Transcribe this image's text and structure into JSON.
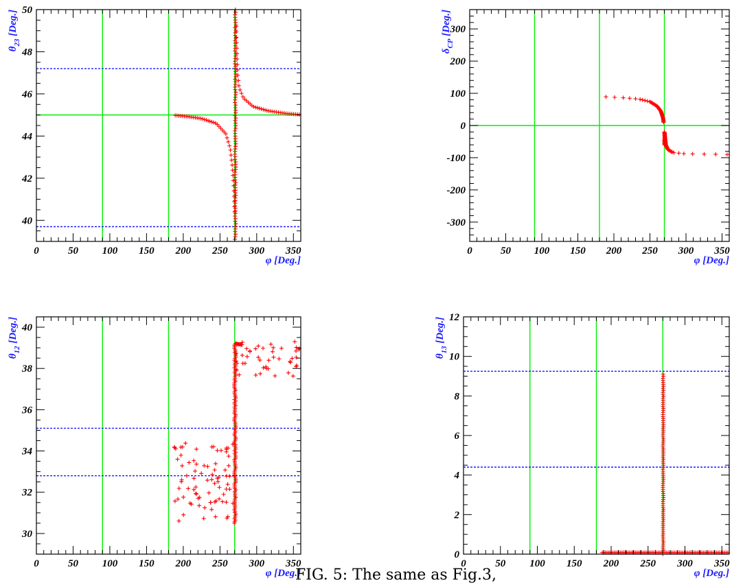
{
  "caption": "FIG. 5: The same as Fig.3,",
  "chart_data": [
    {
      "id": "theta23",
      "type": "scatter",
      "xlabel": "φ [Deg.]",
      "ylabel_sym": "θ",
      "ylabel_sub": "23",
      "ylabel_unit": " [Deg.]",
      "xlim": [
        0,
        360
      ],
      "ylim": [
        39,
        50
      ],
      "xticks": [
        0,
        50,
        100,
        150,
        200,
        250,
        300,
        350
      ],
      "yticks": [
        40,
        42,
        44,
        46,
        48,
        50
      ],
      "xminor": 10,
      "yminor": 0.5,
      "vlines": [
        90,
        180,
        270
      ],
      "hlines": [
        45
      ],
      "dashed_hlines": [
        47.2,
        39.7
      ],
      "curves": [
        {
          "kind": "vertical",
          "x": 271,
          "y": [
            39.1,
            50
          ],
          "jitter": 1.3,
          "n": 90
        },
        {
          "kind": "poly",
          "points": [
            [
              189,
              44.98
            ],
            [
              205,
              44.93
            ],
            [
              225,
              44.83
            ],
            [
              245,
              44.6
            ],
            [
              258,
              44.1
            ],
            [
              264,
              43.4
            ],
            [
              267,
              42.5
            ],
            [
              269,
              41.4
            ],
            [
              270,
              40.4
            ]
          ],
          "n": 45
        },
        {
          "kind": "poly",
          "points": [
            [
              272,
              49.2
            ],
            [
              273,
              48.0
            ],
            [
              274,
              47.0
            ],
            [
              276,
              46.3
            ],
            [
              282,
              45.8
            ],
            [
              295,
              45.4
            ],
            [
              315,
              45.2
            ],
            [
              340,
              45.07
            ],
            [
              358,
              45.02
            ]
          ],
          "n": 45
        }
      ]
    },
    {
      "id": "deltaCP",
      "type": "scatter",
      "xlabel": "φ [Deg.]",
      "ylabel_sym": "δ",
      "ylabel_sub": "CP",
      "ylabel_unit": " [Deg.]",
      "xlim": [
        0,
        360
      ],
      "ylim": [
        -360,
        360
      ],
      "xticks": [
        0,
        50,
        100,
        150,
        200,
        250,
        300,
        350
      ],
      "yticks": [
        -300,
        -200,
        -100,
        0,
        100,
        200,
        300
      ],
      "xminor": 10,
      "yminor": 20,
      "vlines": [
        90,
        180,
        270
      ],
      "hlines": [
        0
      ],
      "dashed_hlines": [],
      "curves": [
        {
          "kind": "poly",
          "points": [
            [
              189,
              89
            ],
            [
              215,
              86
            ],
            [
              235,
              82
            ],
            [
              250,
              74
            ],
            [
              260,
              60
            ],
            [
              265,
              45
            ],
            [
              268,
              25
            ],
            [
              269,
              10
            ]
          ],
          "n": 45
        },
        {
          "kind": "poly",
          "points": [
            [
              270,
              -20
            ],
            [
              271,
              -40
            ],
            [
              272,
              -60
            ],
            [
              275,
              -75
            ],
            [
              282,
              -84
            ],
            [
              300,
              -88
            ],
            [
              330,
              -89
            ],
            [
              357,
              -90
            ]
          ],
          "n": 45
        },
        {
          "kind": "vertical",
          "x": 270.5,
          "y": [
            -60,
            -25
          ],
          "jitter": 1.0,
          "n": 20
        }
      ]
    },
    {
      "id": "theta12",
      "type": "scatter",
      "xlabel": "φ [Deg.]",
      "ylabel_sym": "θ",
      "ylabel_sub": "12",
      "ylabel_unit": " [Deg.]",
      "xlim": [
        0,
        360
      ],
      "ylim": [
        29,
        40.5
      ],
      "xticks": [
        0,
        50,
        100,
        150,
        200,
        250,
        300,
        350
      ],
      "yticks": [
        30,
        32,
        34,
        36,
        38,
        40
      ],
      "xminor": 10,
      "yminor": 0.5,
      "vlines": [
        90,
        180,
        270
      ],
      "hlines": [],
      "dashed_hlines": [
        35.1,
        32.8
      ],
      "curves": [
        {
          "kind": "vertical",
          "x": 270.5,
          "y": [
            30.5,
            39.2
          ],
          "jitter": 2.0,
          "n": 120
        },
        {
          "kind": "poly",
          "points": [
            [
              271,
              39.2
            ],
            [
              280,
              39.15
            ]
          ],
          "n": 10
        },
        {
          "kind": "cloud",
          "x": [
            188,
            268
          ],
          "y": [
            30.6,
            34.5
          ],
          "n": 80,
          "seed": 7
        },
        {
          "kind": "cloud",
          "x": [
            272,
            358
          ],
          "y": [
            37.6,
            39.3
          ],
          "n": 45,
          "seed": 11
        }
      ]
    },
    {
      "id": "theta13",
      "type": "scatter",
      "xlabel": "φ [Deg.]",
      "ylabel_sym": "θ",
      "ylabel_sub": "13",
      "ylabel_unit": " [Deg.]",
      "xlim": [
        0,
        360
      ],
      "ylim": [
        0,
        12
      ],
      "xticks": [
        0,
        50,
        100,
        150,
        200,
        250,
        300,
        350
      ],
      "yticks": [
        0,
        2,
        4,
        6,
        8,
        10,
        12
      ],
      "xminor": 10,
      "yminor": 0.5,
      "vlines": [
        90,
        180,
        270
      ],
      "hlines": [],
      "dashed_hlines": [
        9.25,
        4.4
      ],
      "curves": [
        {
          "kind": "vertical",
          "x": 270.5,
          "y": [
            0,
            9.1
          ],
          "jitter": 0.8,
          "n": 90
        },
        {
          "kind": "poly",
          "points": [
            [
              188,
              0.08
            ],
            [
              268,
              0.08
            ]
          ],
          "n": 40
        },
        {
          "kind": "poly",
          "points": [
            [
              273,
              0.08
            ],
            [
              358,
              0.08
            ]
          ],
          "n": 40
        }
      ]
    }
  ]
}
